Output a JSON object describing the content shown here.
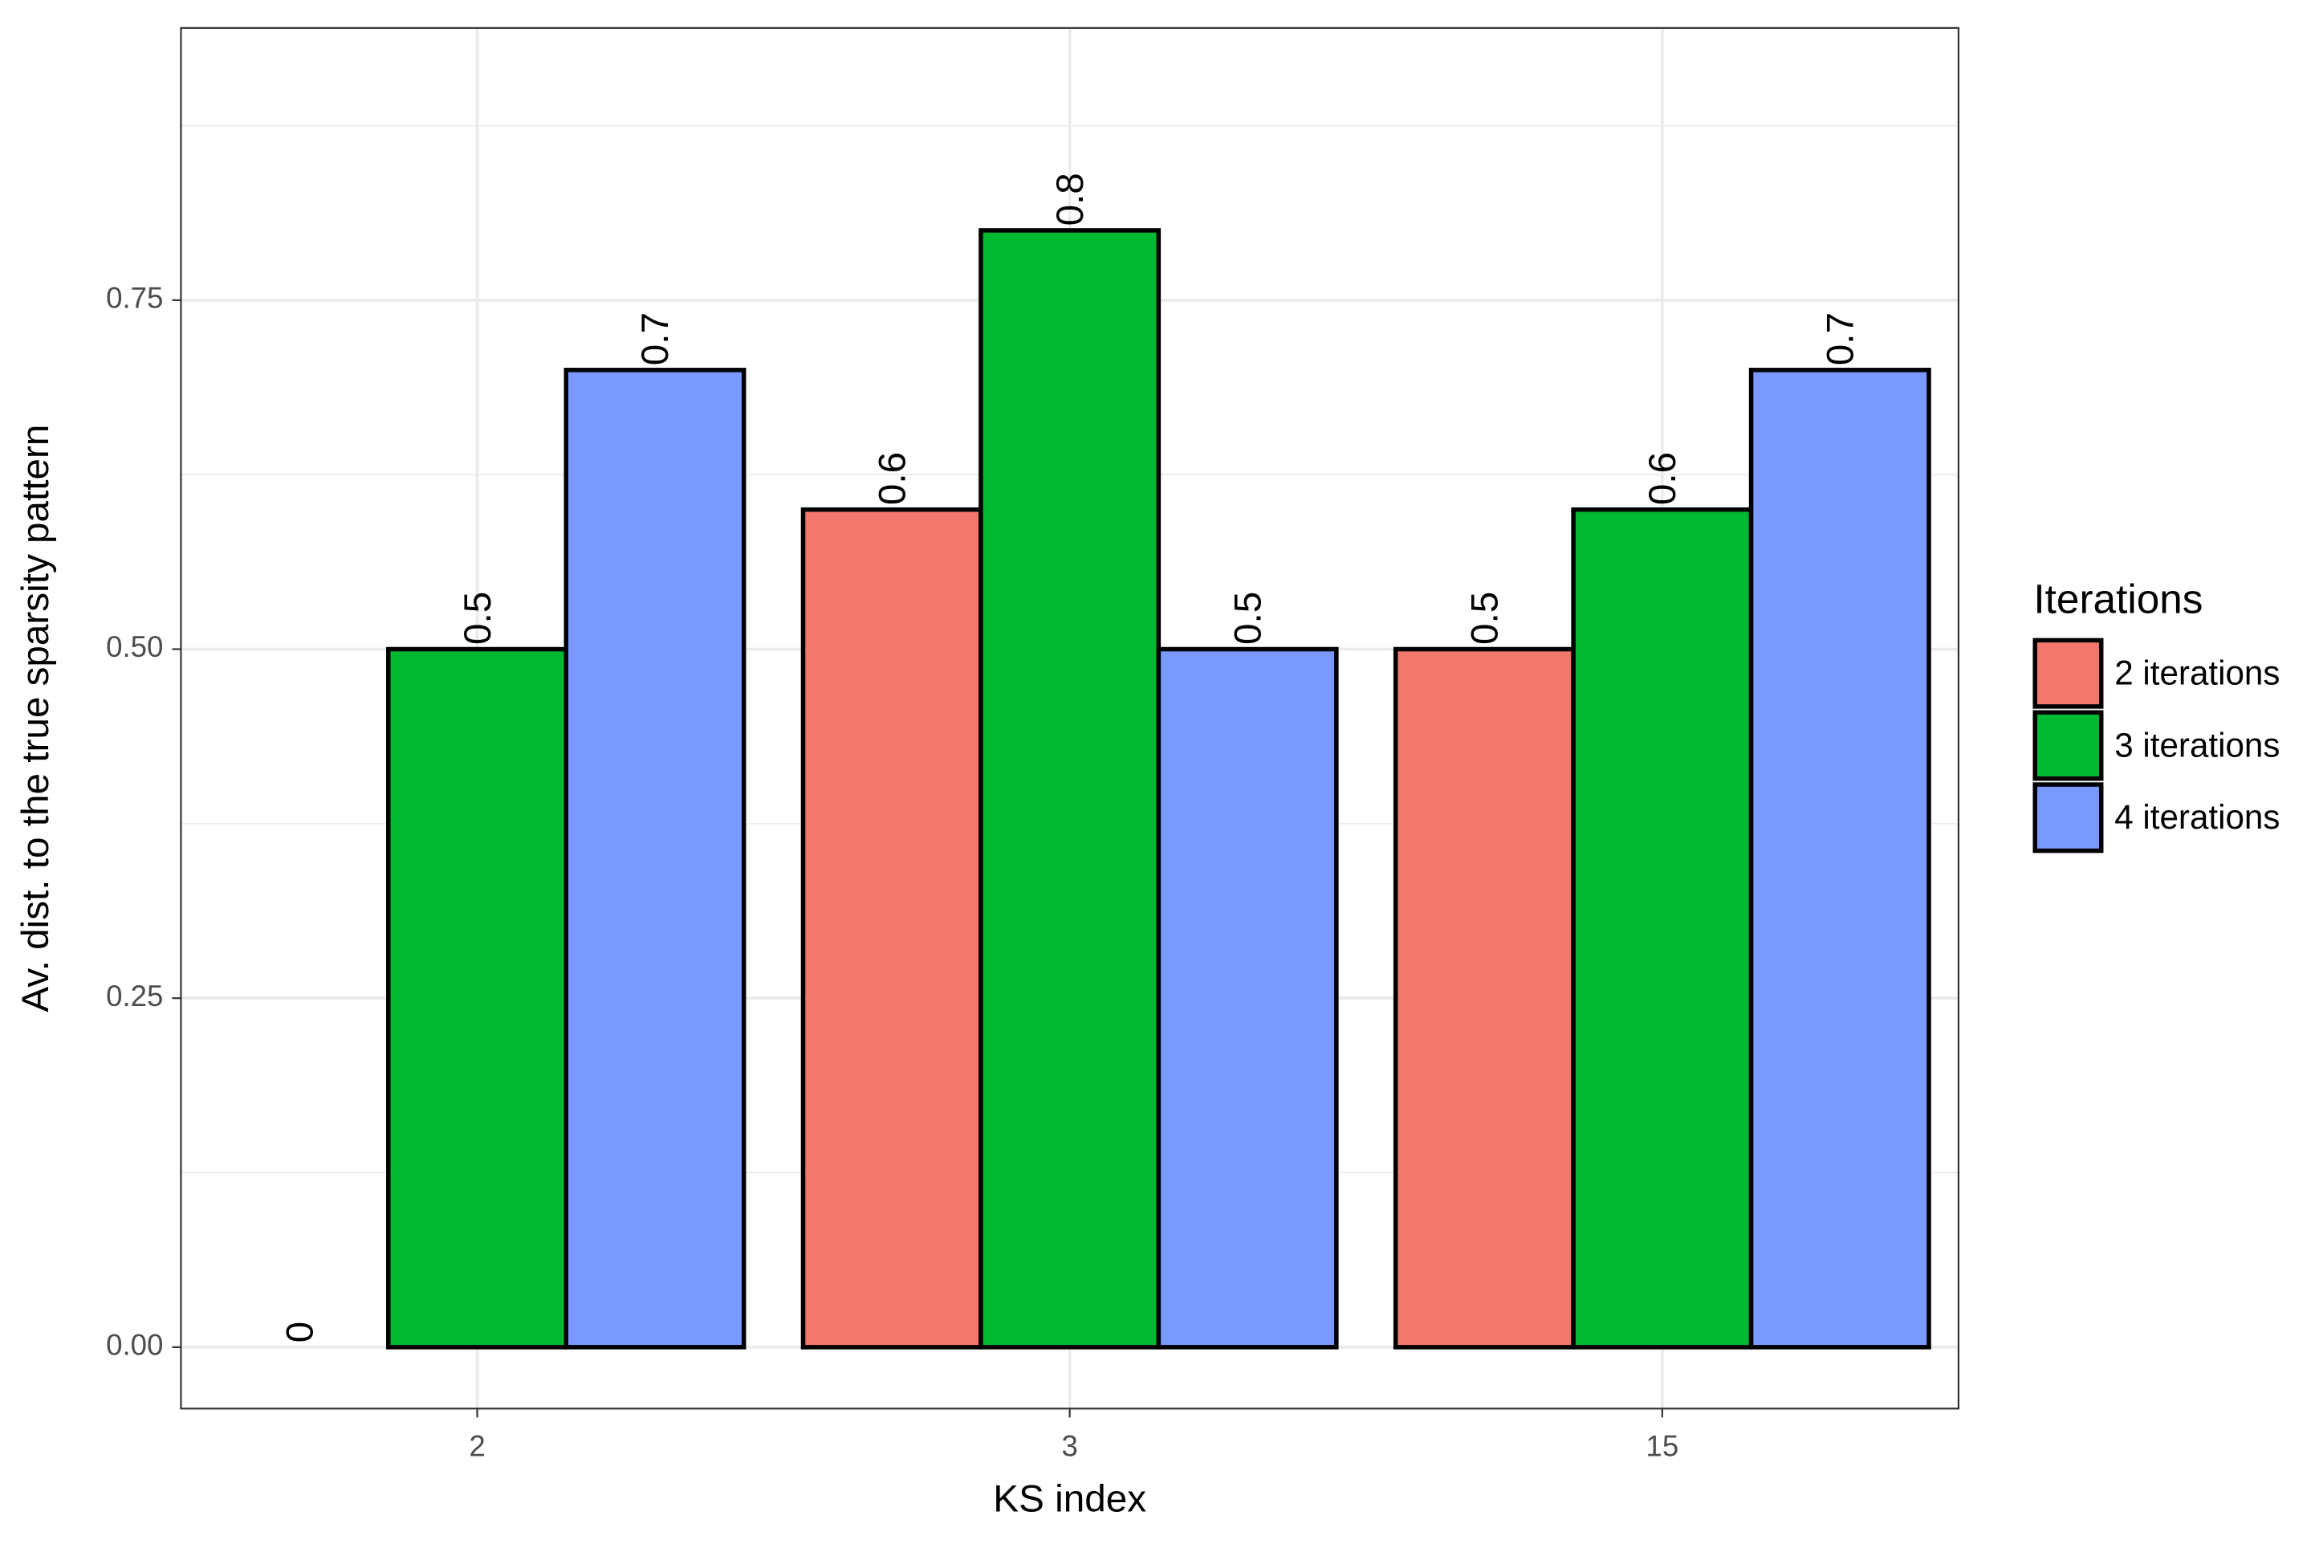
{
  "chart_data": {
    "type": "bar",
    "x_label": "KS index",
    "y_label": "Av. dist. to the true sparsity pattern",
    "categories": [
      "2",
      "3",
      "15"
    ],
    "series": [
      {
        "name": "2 iterations",
        "color": "#f4776d",
        "values": [
          0,
          0.6,
          0.5
        ]
      },
      {
        "name": "3 iterations",
        "color": "#00b933",
        "values": [
          0.5,
          0.8,
          0.6
        ]
      },
      {
        "name": "4 iterations",
        "color": "#7a99ff",
        "values": [
          0.7,
          0.5,
          0.7
        ]
      }
    ],
    "legend_title": "Iterations",
    "legend": "right",
    "ylim": [
      -0.044,
      0.945
    ],
    "yticks": [
      {
        "value": 0,
        "label": "0.00"
      },
      {
        "value": 0.25,
        "label": "0.25"
      },
      {
        "value": 0.5,
        "label": "0.50"
      },
      {
        "value": 0.75,
        "label": "0.75"
      }
    ],
    "grid": true
  }
}
